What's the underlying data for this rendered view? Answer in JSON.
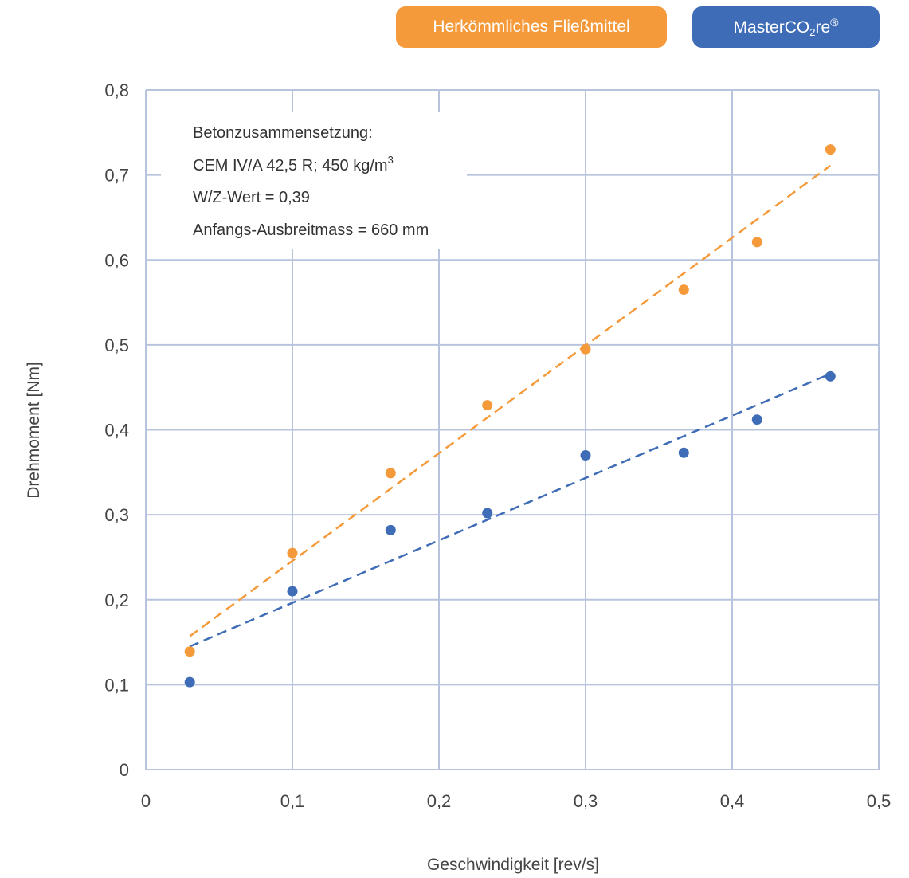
{
  "legend": {
    "series0_label": "Herkömmliches Fließmittel",
    "series1_label_main": "MasterCO",
    "series1_label_sub": "2",
    "series1_label_tail": "re",
    "series1_label_sup": "®"
  },
  "annotation": {
    "line1": "Betonzusammensetzung:",
    "line2_main": "CEM IV/A 42,5 R; 450 kg/m",
    "line2_sup": "3",
    "line3": "W/Z-Wert = 0,39",
    "line4": "Anfangs-Ausbreitmass = 660 mm"
  },
  "colors": {
    "orange": "#f59a3a",
    "blue": "#3f6cb7",
    "grid": "#b8c4de"
  },
  "chart_data": {
    "type": "scatter",
    "xlabel": "Geschwindigkeit [rev/s]",
    "ylabel": "Drehmoment [Nm]",
    "xlim": [
      0,
      0.5
    ],
    "ylim": [
      0,
      0.8
    ],
    "xticks": [
      0,
      0.1,
      0.2,
      0.3,
      0.4,
      0.5
    ],
    "xtick_labels": [
      "0",
      "0,1",
      "0,2",
      "0,3",
      "0,4",
      "0,5"
    ],
    "yticks": [
      0,
      0.1,
      0.2,
      0.3,
      0.4,
      0.5,
      0.6,
      0.7,
      0.8
    ],
    "ytick_labels": [
      "0",
      "0,1",
      "0,2",
      "0,3",
      "0,4",
      "0,5",
      "0,6",
      "0,7",
      "0,8"
    ],
    "grid": true,
    "legend_position": "top-right",
    "series": [
      {
        "name": "Herkömmliches Fließmittel",
        "color": "#f59a3a",
        "x": [
          0.03,
          0.1,
          0.167,
          0.233,
          0.3,
          0.367,
          0.417,
          0.467
        ],
        "y": [
          0.139,
          0.255,
          0.349,
          0.429,
          0.495,
          0.565,
          0.621,
          0.73
        ],
        "trendline": {
          "x": [
            0.03,
            0.467
          ],
          "y": [
            0.157,
            0.711
          ]
        }
      },
      {
        "name": "MasterCO2re®",
        "color": "#3f6cb7",
        "x": [
          0.03,
          0.1,
          0.167,
          0.233,
          0.3,
          0.367,
          0.417,
          0.467
        ],
        "y": [
          0.103,
          0.21,
          0.282,
          0.302,
          0.37,
          0.373,
          0.412,
          0.463
        ],
        "trendline": {
          "x": [
            0.03,
            0.467
          ],
          "y": [
            0.145,
            0.466
          ]
        }
      }
    ]
  }
}
